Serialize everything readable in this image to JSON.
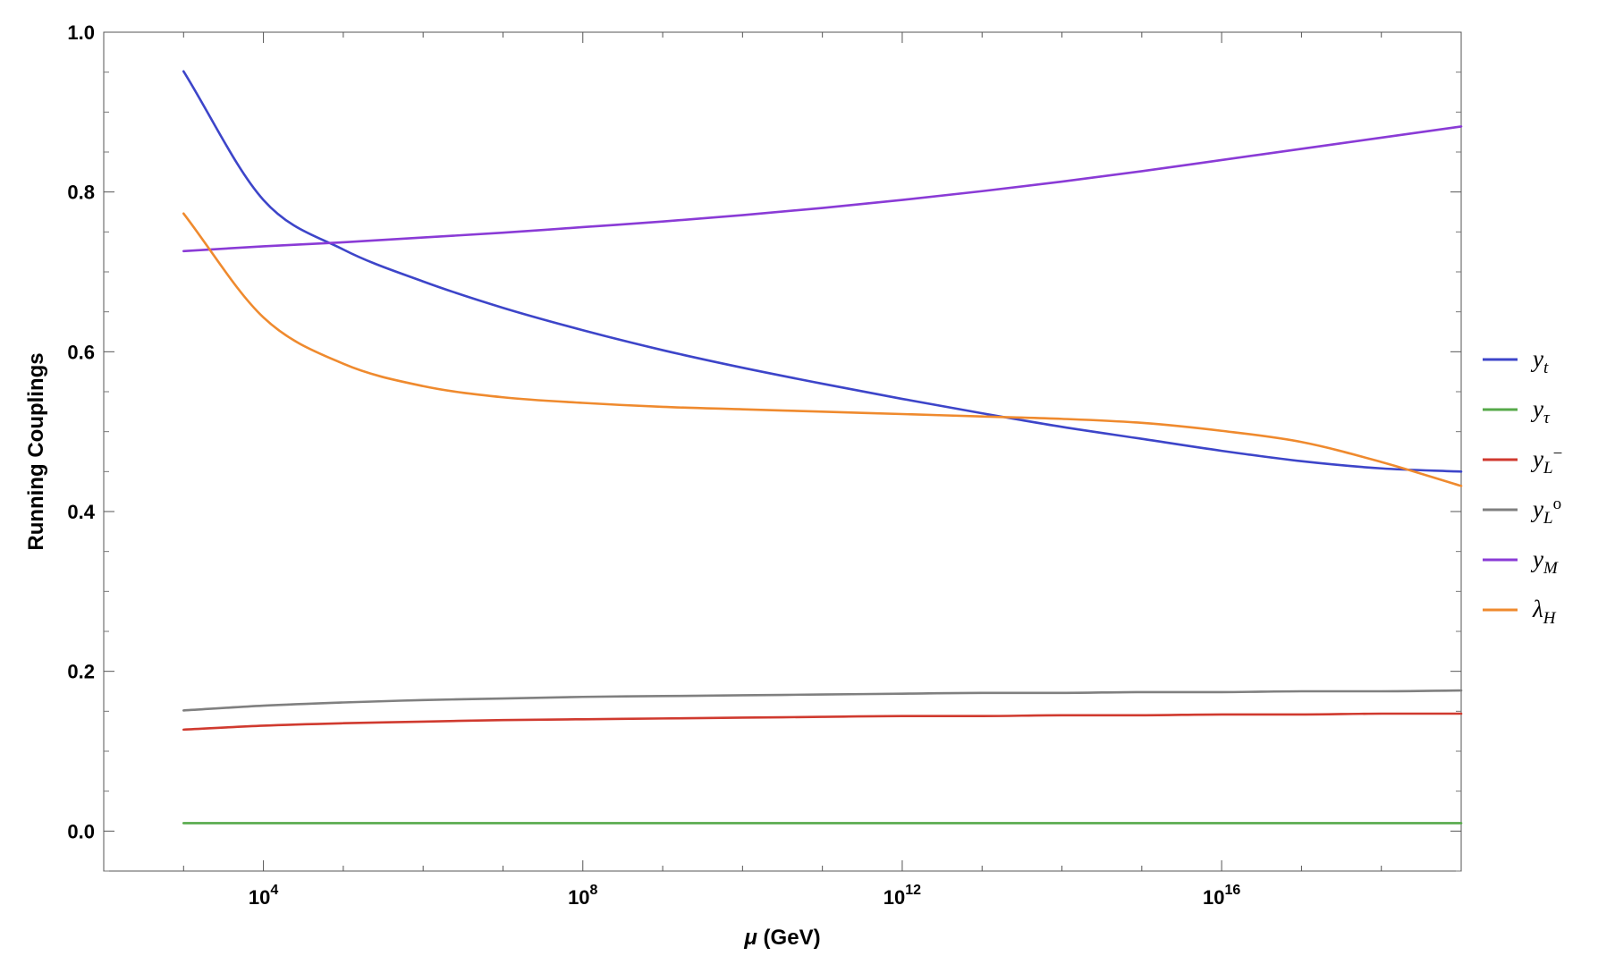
{
  "chart_data": {
    "type": "line",
    "xlabel": "μ (GeV)",
    "ylabel": "Running Couplings",
    "x_scale": "log10",
    "xlim": [
      100,
      1e+19
    ],
    "ylim": [
      -0.05,
      1.0
    ],
    "y_ticks": [
      "0.0",
      "0.2",
      "0.4",
      "0.6",
      "0.8",
      "1.0"
    ],
    "x_ticks": [
      {
        "base": "10",
        "exp": "4",
        "value": 10000.0
      },
      {
        "base": "10",
        "exp": "8",
        "value": 100000000.0
      },
      {
        "base": "10",
        "exp": "12",
        "value": 1000000000000.0
      },
      {
        "base": "10",
        "exp": "16",
        "value": 1e+16
      }
    ],
    "grid": false,
    "legend_position": "right",
    "x": [
      1000,
      10000.0,
      100000.0,
      1000000.0,
      10000000.0,
      100000000.0,
      1000000000.0,
      10000000000.0,
      100000000000.0,
      1000000000000.0,
      10000000000000.0,
      100000000000000.0,
      1000000000000000.0,
      1e+16,
      1e+17,
      1e+18,
      1e+19
    ],
    "series": [
      {
        "key": "yt",
        "main": "y",
        "sub": "t",
        "sup": "",
        "color": "#3d45c9",
        "values": [
          0.951,
          0.79,
          0.728,
          0.688,
          0.655,
          0.627,
          0.602,
          0.58,
          0.56,
          0.541,
          0.523,
          0.506,
          0.491,
          0.476,
          0.463,
          0.454,
          0.45
        ]
      },
      {
        "key": "ytau",
        "main": "y",
        "sub": "τ",
        "sup": "",
        "color": "#56a94a",
        "values": [
          0.01,
          0.01,
          0.01,
          0.01,
          0.01,
          0.01,
          0.01,
          0.01,
          0.01,
          0.01,
          0.01,
          0.01,
          0.01,
          0.01,
          0.01,
          0.01,
          0.01
        ]
      },
      {
        "key": "yLminus",
        "main": "y",
        "sub": "L",
        "sup": "−",
        "color": "#d03a2f",
        "values": [
          0.127,
          0.132,
          0.135,
          0.137,
          0.139,
          0.14,
          0.141,
          0.142,
          0.143,
          0.144,
          0.144,
          0.145,
          0.145,
          0.146,
          0.146,
          0.147,
          0.147
        ]
      },
      {
        "key": "yL0",
        "main": "y",
        "sub": "L",
        "sup": "o",
        "color": "#808080",
        "values": [
          0.151,
          0.157,
          0.161,
          0.164,
          0.166,
          0.168,
          0.169,
          0.17,
          0.171,
          0.172,
          0.173,
          0.173,
          0.174,
          0.174,
          0.175,
          0.175,
          0.176
        ]
      },
      {
        "key": "yM",
        "main": "y",
        "sub": "M",
        "sup": "",
        "color": "#8a3bd6",
        "values": [
          0.726,
          0.732,
          0.737,
          0.743,
          0.749,
          0.756,
          0.763,
          0.771,
          0.78,
          0.79,
          0.801,
          0.813,
          0.826,
          0.84,
          0.854,
          0.868,
          0.882
        ]
      },
      {
        "key": "lambdaH",
        "main": "λ",
        "sub": "H",
        "sup": "",
        "color": "#ef8a2e",
        "values": [
          0.773,
          0.643,
          0.585,
          0.557,
          0.543,
          0.536,
          0.531,
          0.528,
          0.525,
          0.522,
          0.519,
          0.516,
          0.511,
          0.501,
          0.487,
          0.462,
          0.432
        ]
      }
    ]
  }
}
